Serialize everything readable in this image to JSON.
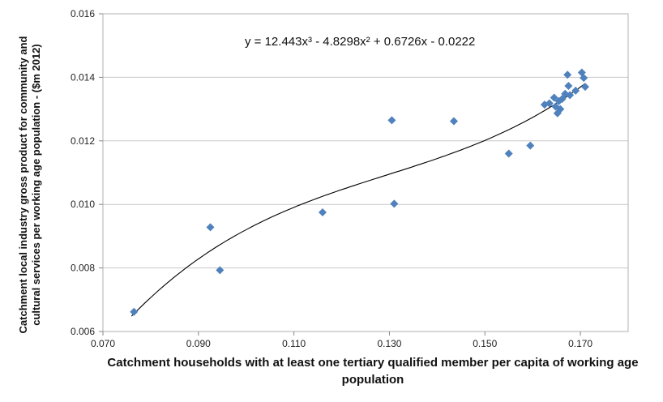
{
  "chart_data": {
    "type": "scatter",
    "title": "",
    "xlabel": "Catchment households with at least one tertiary qualified member per capita of working age population",
    "ylabel": "Catchment local industry gross product for community and cultural services per working age population - ($m 2012)",
    "xlim": [
      0.07,
      0.18
    ],
    "ylim": [
      0.006,
      0.016
    ],
    "x_ticks": [
      "0.070",
      "0.090",
      "0.110",
      "0.130",
      "0.150",
      "0.170"
    ],
    "y_ticks": [
      "0.006",
      "0.008",
      "0.010",
      "0.012",
      "0.014",
      "0.016"
    ],
    "marker_color": "#4f81bd",
    "trendline": {
      "type": "polynomial",
      "order": 3,
      "equation": "y = 12.443x³ - 4.8298x² + 0.6726x  - 0.0222",
      "coefficients": [
        12.443,
        -4.8298,
        0.6726,
        -0.0222
      ],
      "x_range": [
        0.076,
        0.171
      ],
      "color": "#000000"
    },
    "grid": "horizontal",
    "series": [
      {
        "points": [
          [
            0.0765,
            0.00662
          ],
          [
            0.0925,
            0.00928
          ],
          [
            0.0945,
            0.00793
          ],
          [
            0.116,
            0.00975
          ],
          [
            0.1305,
            0.01265
          ],
          [
            0.131,
            0.01002
          ],
          [
            0.1435,
            0.01262
          ],
          [
            0.155,
            0.0116
          ],
          [
            0.1595,
            0.01185
          ],
          [
            0.1625,
            0.01314
          ],
          [
            0.1635,
            0.01318
          ],
          [
            0.1645,
            0.01336
          ],
          [
            0.1648,
            0.01308
          ],
          [
            0.1652,
            0.01287
          ],
          [
            0.1655,
            0.01325
          ],
          [
            0.1658,
            0.013
          ],
          [
            0.1662,
            0.01332
          ],
          [
            0.1668,
            0.01348
          ],
          [
            0.1673,
            0.01408
          ],
          [
            0.1675,
            0.01373
          ],
          [
            0.1678,
            0.01344
          ],
          [
            0.169,
            0.01358
          ],
          [
            0.1703,
            0.01415
          ],
          [
            0.1707,
            0.01398
          ],
          [
            0.171,
            0.0137
          ]
        ]
      }
    ]
  }
}
